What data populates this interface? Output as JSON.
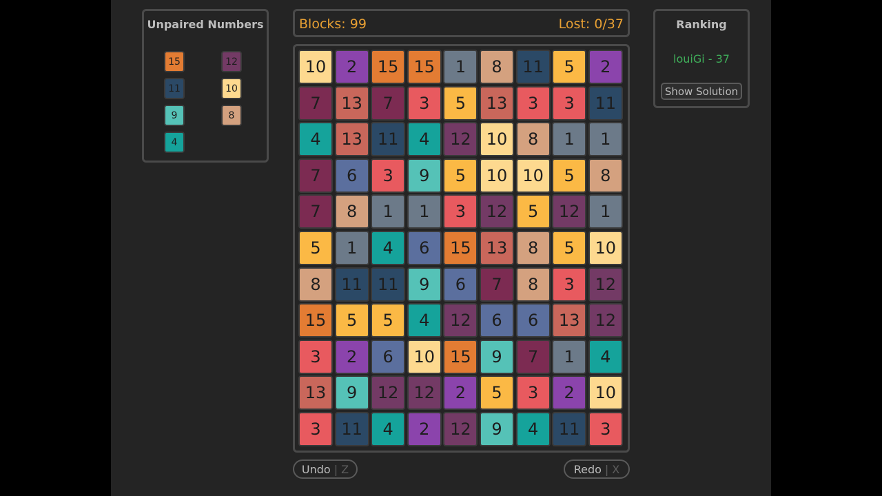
{
  "colors": {
    "background": "#242424",
    "outer": "#000000",
    "accent": "#e8a033",
    "ranking_text": "#3fae5a"
  },
  "tile_colors": {
    "1": "#6c7a89",
    "2": "#8b44ac",
    "3": "#e85a5f",
    "4": "#15a39b",
    "5": "#fbb945",
    "6": "#5b6f9e",
    "7": "#7c2b52",
    "8": "#d4a17f",
    "9": "#55c2b7",
    "10": "#fdd98f",
    "11": "#2b4966",
    "12": "#733a65",
    "13": "#c9675b",
    "15": "#e37c33"
  },
  "unpaired": {
    "title": "Unpaired Numbers",
    "numbers": [
      "15",
      "12",
      "11",
      "10",
      "9",
      "8",
      "4"
    ]
  },
  "header": {
    "blocks_label": "Blocks: 99",
    "lost_label": "Lost: 0/37"
  },
  "board": {
    "rows": [
      [
        "10",
        "2",
        "15",
        "15",
        "1",
        "8",
        "11",
        "5",
        "2"
      ],
      [
        "7",
        "13",
        "7",
        "3",
        "5",
        "13",
        "3",
        "3",
        "11"
      ],
      [
        "4",
        "13",
        "11",
        "4",
        "12",
        "10",
        "8",
        "1",
        "1"
      ],
      [
        "7",
        "6",
        "3",
        "9",
        "5",
        "10",
        "10",
        "5",
        "8"
      ],
      [
        "7",
        "8",
        "1",
        "1",
        "3",
        "12",
        "5",
        "12",
        "1"
      ],
      [
        "5",
        "1",
        "4",
        "6",
        "15",
        "13",
        "8",
        "5",
        "10"
      ],
      [
        "8",
        "11",
        "11",
        "9",
        "6",
        "7",
        "8",
        "3",
        "12"
      ],
      [
        "15",
        "5",
        "5",
        "4",
        "12",
        "6",
        "6",
        "13",
        "12"
      ],
      [
        "3",
        "2",
        "6",
        "10",
        "15",
        "9",
        "7",
        "1",
        "4"
      ],
      [
        "13",
        "9",
        "12",
        "12",
        "2",
        "5",
        "3",
        "2",
        "10"
      ],
      [
        "3",
        "11",
        "4",
        "2",
        "12",
        "9",
        "4",
        "11",
        "3"
      ]
    ]
  },
  "ranking": {
    "title": "Ranking",
    "entry": "louiGi - 37",
    "show_solution_label": "Show Solution"
  },
  "controls": {
    "undo_label": "Undo",
    "undo_key": "Z",
    "redo_label": "Redo",
    "redo_key": "X",
    "separator": "|"
  }
}
